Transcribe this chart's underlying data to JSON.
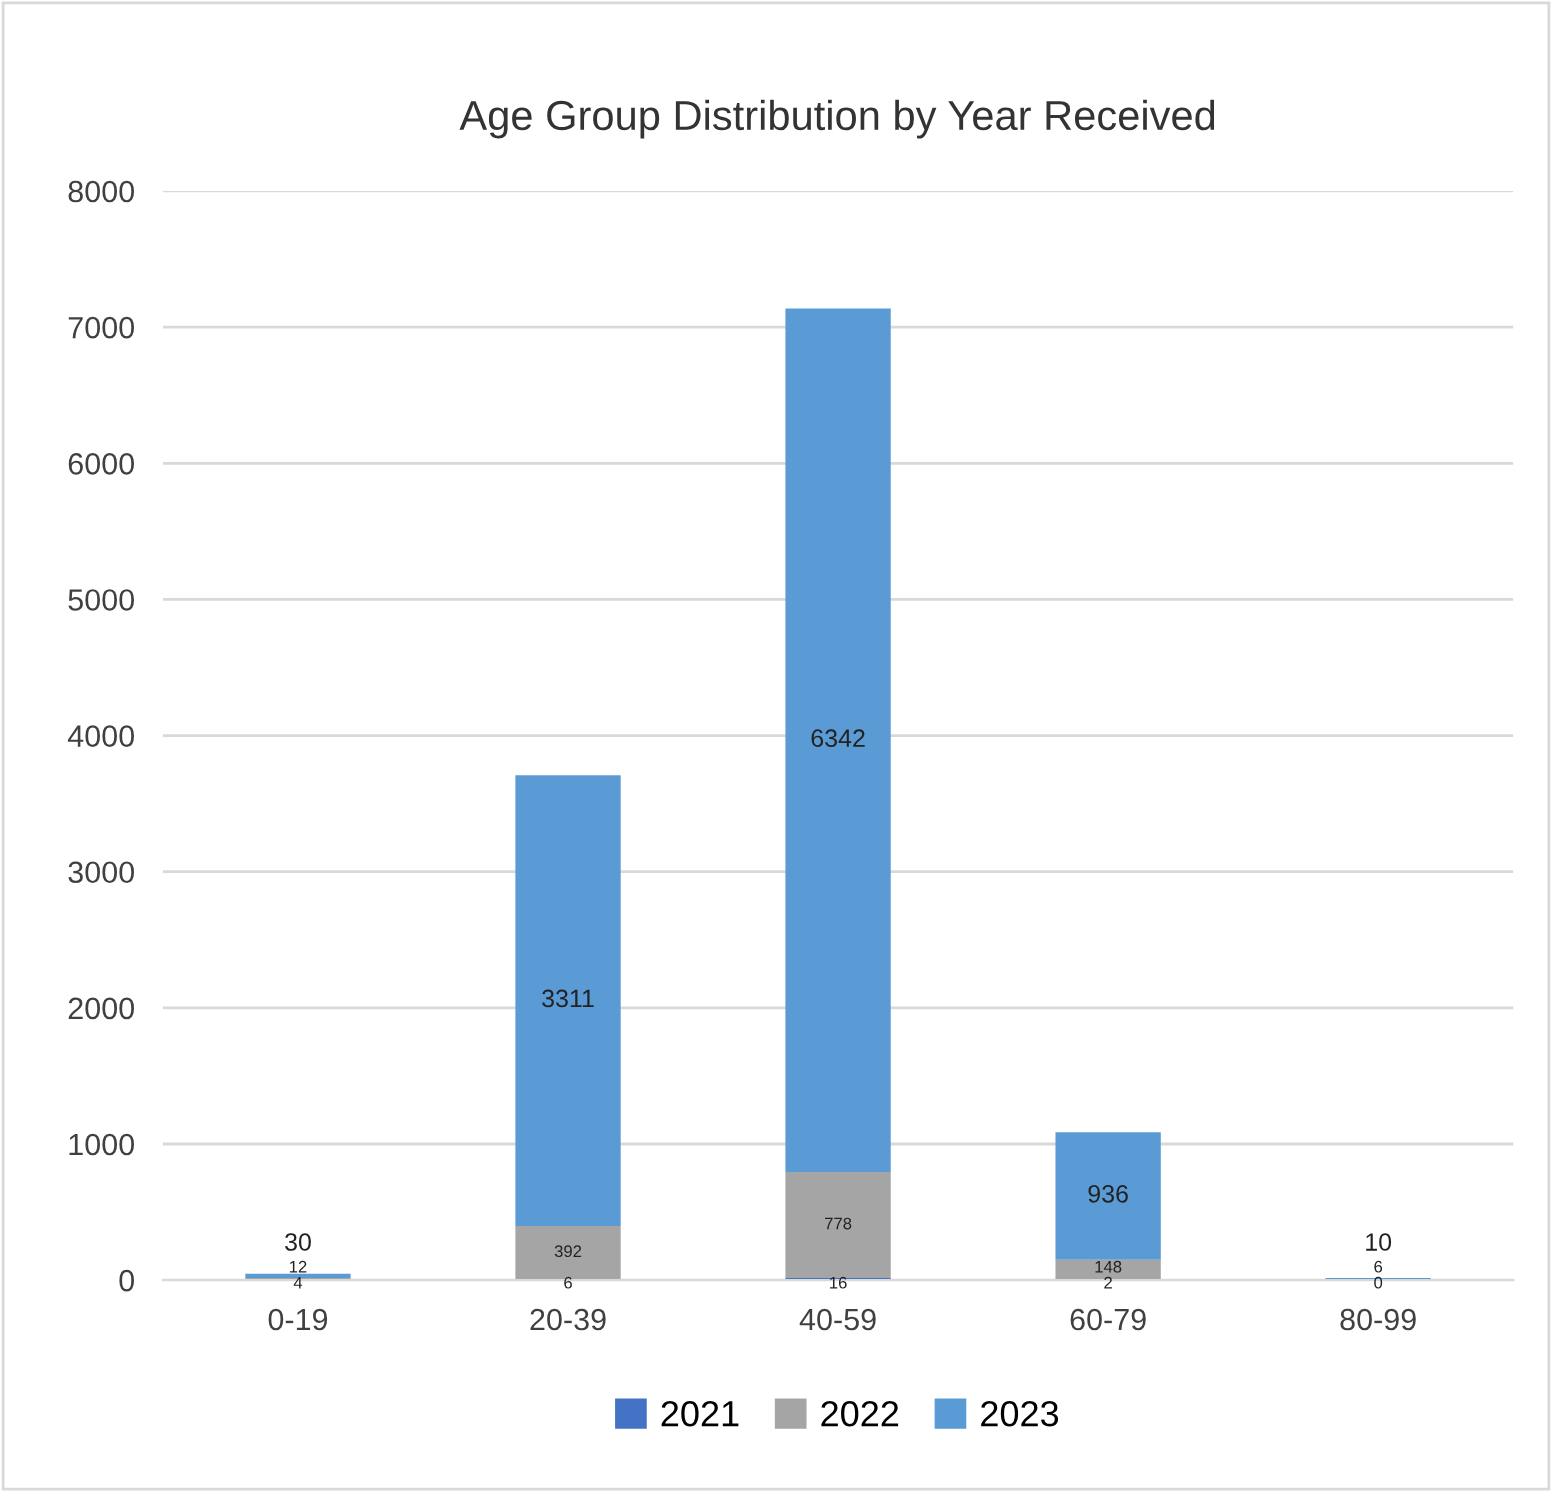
{
  "chart_data": {
    "type": "bar",
    "title": "Age Group Distribution by Year Received",
    "stacked": true,
    "data_labels": true,
    "categories": [
      "0-19",
      "20-39",
      "40-59",
      "60-79",
      "80-99"
    ],
    "series": [
      {
        "name": "2021",
        "color": "#4472c4",
        "values": [
          4,
          6,
          16,
          2,
          0
        ]
      },
      {
        "name": "2022",
        "color": "#a5a5a5",
        "values": [
          12,
          392,
          778,
          148,
          6
        ]
      },
      {
        "name": "2023",
        "color": "#5b9bd5",
        "values": [
          30,
          3311,
          6342,
          936,
          10
        ]
      }
    ],
    "ylim": [
      0,
      8000
    ],
    "yticks": [
      0,
      1000,
      2000,
      3000,
      4000,
      5000,
      6000,
      7000,
      8000
    ],
    "grid": "y",
    "legend": "bottom"
  }
}
